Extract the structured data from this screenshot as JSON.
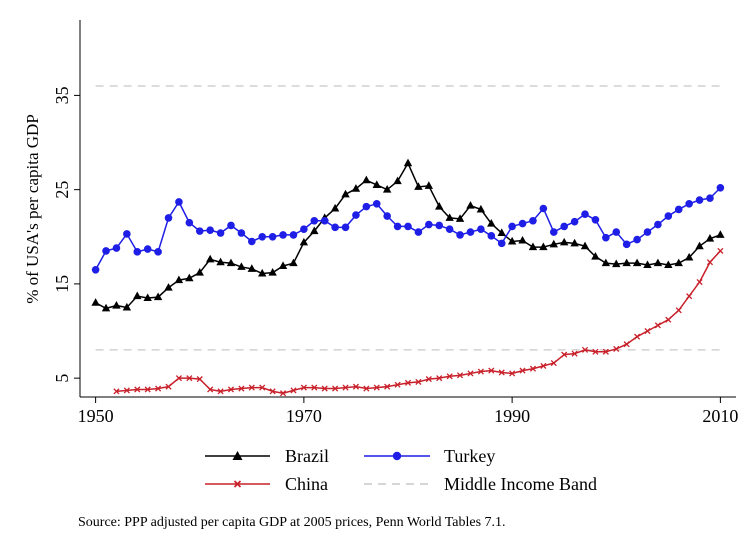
{
  "chart_data": {
    "type": "line",
    "ylabel": "% of USA's per capita GDP",
    "xlabel": "",
    "title": "",
    "source": "Source: PPP adjusted per capita GDP at 2005 prices, Penn World Tables 7.1.",
    "x_ticks": [
      1950,
      1970,
      1990,
      2010
    ],
    "y_ticks": [
      5,
      15,
      25,
      35
    ],
    "xlim": [
      1948.5,
      2011.5
    ],
    "ylim": [
      3,
      43
    ],
    "grid": false,
    "legend_placement": "bottom",
    "series": [
      {
        "name": "Brazil",
        "color": "#000000",
        "marker": "triangle",
        "x": [
          1950,
          1951,
          1952,
          1953,
          1954,
          1955,
          1956,
          1957,
          1958,
          1959,
          1960,
          1961,
          1962,
          1963,
          1964,
          1965,
          1966,
          1967,
          1968,
          1969,
          1970,
          1971,
          1972,
          1973,
          1974,
          1975,
          1976,
          1977,
          1978,
          1979,
          1980,
          1981,
          1982,
          1983,
          1984,
          1985,
          1986,
          1987,
          1988,
          1989,
          1990,
          1991,
          1992,
          1993,
          1994,
          1995,
          1996,
          1997,
          1998,
          1999,
          2000,
          2001,
          2002,
          2003,
          2004,
          2005,
          2006,
          2007,
          2008,
          2009,
          2010
        ],
        "values": [
          13.0,
          12.4,
          12.7,
          12.5,
          13.7,
          13.5,
          13.6,
          14.6,
          15.4,
          15.6,
          16.2,
          17.6,
          17.3,
          17.2,
          16.8,
          16.6,
          16.1,
          16.2,
          16.9,
          17.2,
          19.4,
          20.6,
          22.0,
          23.0,
          24.5,
          25.1,
          26.0,
          25.5,
          25.0,
          25.9,
          27.8,
          25.3,
          25.4,
          23.2,
          22.0,
          21.9,
          23.3,
          22.9,
          21.4,
          20.4,
          19.5,
          19.6,
          18.9,
          18.9,
          19.2,
          19.4,
          19.3,
          19.0,
          17.9,
          17.2,
          17.1,
          17.2,
          17.2,
          17.0,
          17.2,
          17.0,
          17.2,
          17.8,
          19.0,
          19.8,
          20.2
        ]
      },
      {
        "name": "Turkey",
        "color": "#1e1ee6",
        "marker": "circle",
        "x": [
          1950,
          1951,
          1952,
          1953,
          1954,
          1955,
          1956,
          1957,
          1958,
          1959,
          1960,
          1961,
          1962,
          1963,
          1964,
          1965,
          1966,
          1967,
          1968,
          1969,
          1970,
          1971,
          1972,
          1973,
          1974,
          1975,
          1976,
          1977,
          1978,
          1979,
          1980,
          1981,
          1982,
          1983,
          1984,
          1985,
          1986,
          1987,
          1988,
          1989,
          1990,
          1991,
          1992,
          1993,
          1994,
          1995,
          1996,
          1997,
          1998,
          1999,
          2000,
          2001,
          2002,
          2003,
          2004,
          2005,
          2006,
          2007,
          2008,
          2009,
          2010
        ],
        "values": [
          16.5,
          18.5,
          18.8,
          20.3,
          18.4,
          18.7,
          18.4,
          22.0,
          23.7,
          21.5,
          20.6,
          20.7,
          20.4,
          21.2,
          20.4,
          19.5,
          20.0,
          20.0,
          20.2,
          20.2,
          20.8,
          21.7,
          21.7,
          21.0,
          21.0,
          22.3,
          23.2,
          23.5,
          22.2,
          21.1,
          21.1,
          20.5,
          21.3,
          21.2,
          20.8,
          20.2,
          20.5,
          20.8,
          20.1,
          19.3,
          21.1,
          21.4,
          21.7,
          23.0,
          20.5,
          21.1,
          21.6,
          22.4,
          21.8,
          19.9,
          20.5,
          19.2,
          19.7,
          20.5,
          21.3,
          22.2,
          22.9,
          23.5,
          23.9,
          24.1,
          25.2
        ]
      },
      {
        "name": "China",
        "color": "#c8202a",
        "marker": "x",
        "x": [
          1952,
          1953,
          1954,
          1955,
          1956,
          1957,
          1958,
          1959,
          1960,
          1961,
          1962,
          1963,
          1964,
          1965,
          1966,
          1967,
          1968,
          1969,
          1970,
          1971,
          1972,
          1973,
          1974,
          1975,
          1976,
          1977,
          1978,
          1979,
          1980,
          1981,
          1982,
          1983,
          1984,
          1985,
          1986,
          1987,
          1988,
          1989,
          1990,
          1991,
          1992,
          1993,
          1994,
          1995,
          1996,
          1997,
          1998,
          1999,
          2000,
          2001,
          2002,
          2003,
          2004,
          2005,
          2006,
          2007,
          2008,
          2009,
          2010
        ],
        "values": [
          3.6,
          3.7,
          3.8,
          3.8,
          3.9,
          4.1,
          5.0,
          5.0,
          4.9,
          3.8,
          3.6,
          3.8,
          3.9,
          4.0,
          4.0,
          3.6,
          3.4,
          3.7,
          4.0,
          4.0,
          3.9,
          3.9,
          4.0,
          4.1,
          3.9,
          4.0,
          4.1,
          4.3,
          4.5,
          4.6,
          4.9,
          5.0,
          5.2,
          5.3,
          5.5,
          5.7,
          5.8,
          5.6,
          5.5,
          5.8,
          6.0,
          6.3,
          6.6,
          7.5,
          7.6,
          8.0,
          7.8,
          7.8,
          8.1,
          8.6,
          9.4,
          10.0,
          10.6,
          11.2,
          12.2,
          13.7,
          15.2,
          17.3,
          18.5
        ]
      },
      {
        "name": "Middle Income Band",
        "color": "#c8c8c8",
        "marker": "none",
        "dashed": true,
        "bounds": [
          8,
          36
        ]
      }
    ]
  }
}
